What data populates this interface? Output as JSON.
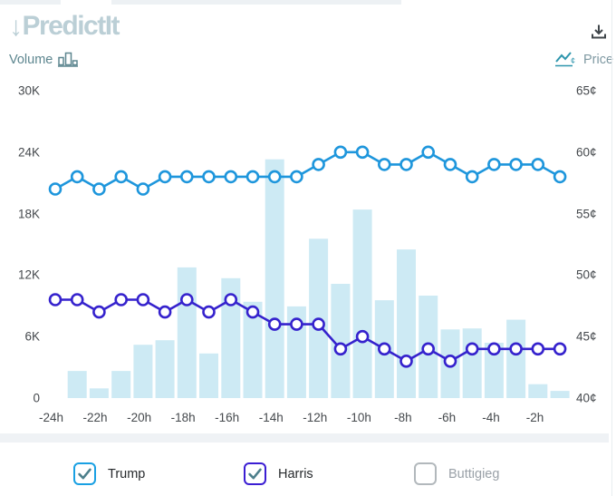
{
  "header": {
    "logo_text": "PredictIt",
    "volume_label": "Volume",
    "price_label": "Price"
  },
  "chart_data": {
    "type": "bar+line",
    "x": [
      -24,
      -23,
      -22,
      -21,
      -20,
      -19,
      -18,
      -17,
      -16,
      -15,
      -14,
      -13,
      -12,
      -11,
      -10,
      -9,
      -8,
      -7,
      -6,
      -5,
      -4,
      -3,
      -2,
      -1
    ],
    "x_tick_labels": [
      "-24h",
      "-22h",
      "-20h",
      "-18h",
      "-16h",
      "-14h",
      "-12h",
      "-10h",
      "-8h",
      "-6h",
      "-4h",
      "-2h"
    ],
    "volume_series": {
      "name": "Volume",
      "type": "bar",
      "color": "#cdeaf4",
      "values": [
        0,
        2650,
        950,
        2650,
        5200,
        5650,
        12750,
        4350,
        11700,
        9400,
        23300,
        8950,
        15550,
        11150,
        18400,
        9550,
        14500,
        10000,
        6700,
        6800,
        5400,
        7650,
        1350,
        700
      ]
    },
    "price_series": [
      {
        "name": "Trump",
        "type": "line",
        "color": "#1e96dc",
        "values_cents": [
          57,
          58,
          57,
          58,
          57,
          58,
          58,
          58,
          58,
          58,
          58,
          58,
          59,
          60,
          60,
          59,
          59,
          60,
          59,
          58,
          59,
          59,
          59,
          58
        ]
      },
      {
        "name": "Harris",
        "type": "line",
        "color": "#3522cd",
        "values_cents": [
          48,
          48,
          47,
          48,
          48,
          47,
          48,
          47,
          48,
          47,
          46,
          46,
          46,
          44,
          45,
          44,
          43,
          44,
          43,
          44,
          44,
          44,
          44,
          44
        ]
      }
    ],
    "left_axis": {
      "label": "Volume",
      "min": 0,
      "max": 30000,
      "ticks": [
        "30K",
        "24K",
        "18K",
        "12K",
        "6K",
        "0"
      ]
    },
    "right_axis": {
      "label": "Price",
      "min": 40,
      "max": 65,
      "unit": "¢",
      "ticks": [
        "65¢",
        "60¢",
        "55¢",
        "50¢",
        "45¢",
        "40¢"
      ]
    },
    "grid": false,
    "legend_position": "bottom"
  },
  "legend": {
    "items": [
      {
        "label": "Trump",
        "checked": true,
        "color": "#19a0e3"
      },
      {
        "label": "Harris",
        "checked": true,
        "color": "#3b1ed3"
      },
      {
        "label": "Buttigieg",
        "checked": false,
        "color": "#b2b8bc"
      }
    ],
    "check_color": "#4d7f8b",
    "unchecked_border": "#b2b8bc",
    "label_color": "#26292c",
    "muted_label_color": "#9aa1a8"
  }
}
